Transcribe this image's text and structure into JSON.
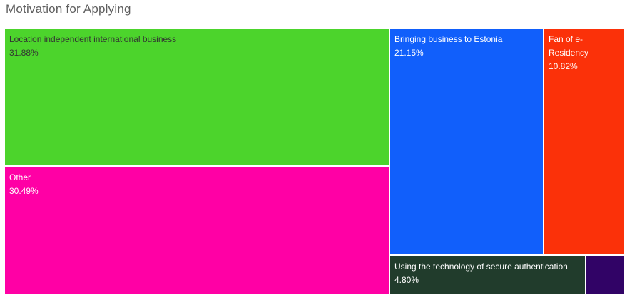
{
  "title": "Motivation for Applying",
  "chart_data": {
    "type": "treemap",
    "title": "Motivation for Applying",
    "legend": "none",
    "items": [
      {
        "label": "Location independent international business",
        "value": 31.88,
        "value_label": "31.88%",
        "color": "#4cd42c",
        "text_color": "#333333"
      },
      {
        "label": "Other",
        "value": 30.49,
        "value_label": "30.49%",
        "color": "#ff00a5",
        "text_color": "#ffffff"
      },
      {
        "label": "Bringing business to Estonia",
        "value": 21.15,
        "value_label": "21.15%",
        "color": "#115ffb",
        "text_color": "#ffffff"
      },
      {
        "label": "Fan of e-Residency",
        "value": 10.82,
        "value_label": "10.82%",
        "color": "#fb3109",
        "text_color": "#ffffff"
      },
      {
        "label": "Using the technology of secure authentication",
        "value": 4.8,
        "value_label": "4.80%",
        "color": "#213c2c",
        "text_color": "#ffffff"
      },
      {
        "label": "",
        "value": 0.86,
        "value_label": "",
        "color": "#310366",
        "text_color": "#ffffff"
      }
    ]
  }
}
